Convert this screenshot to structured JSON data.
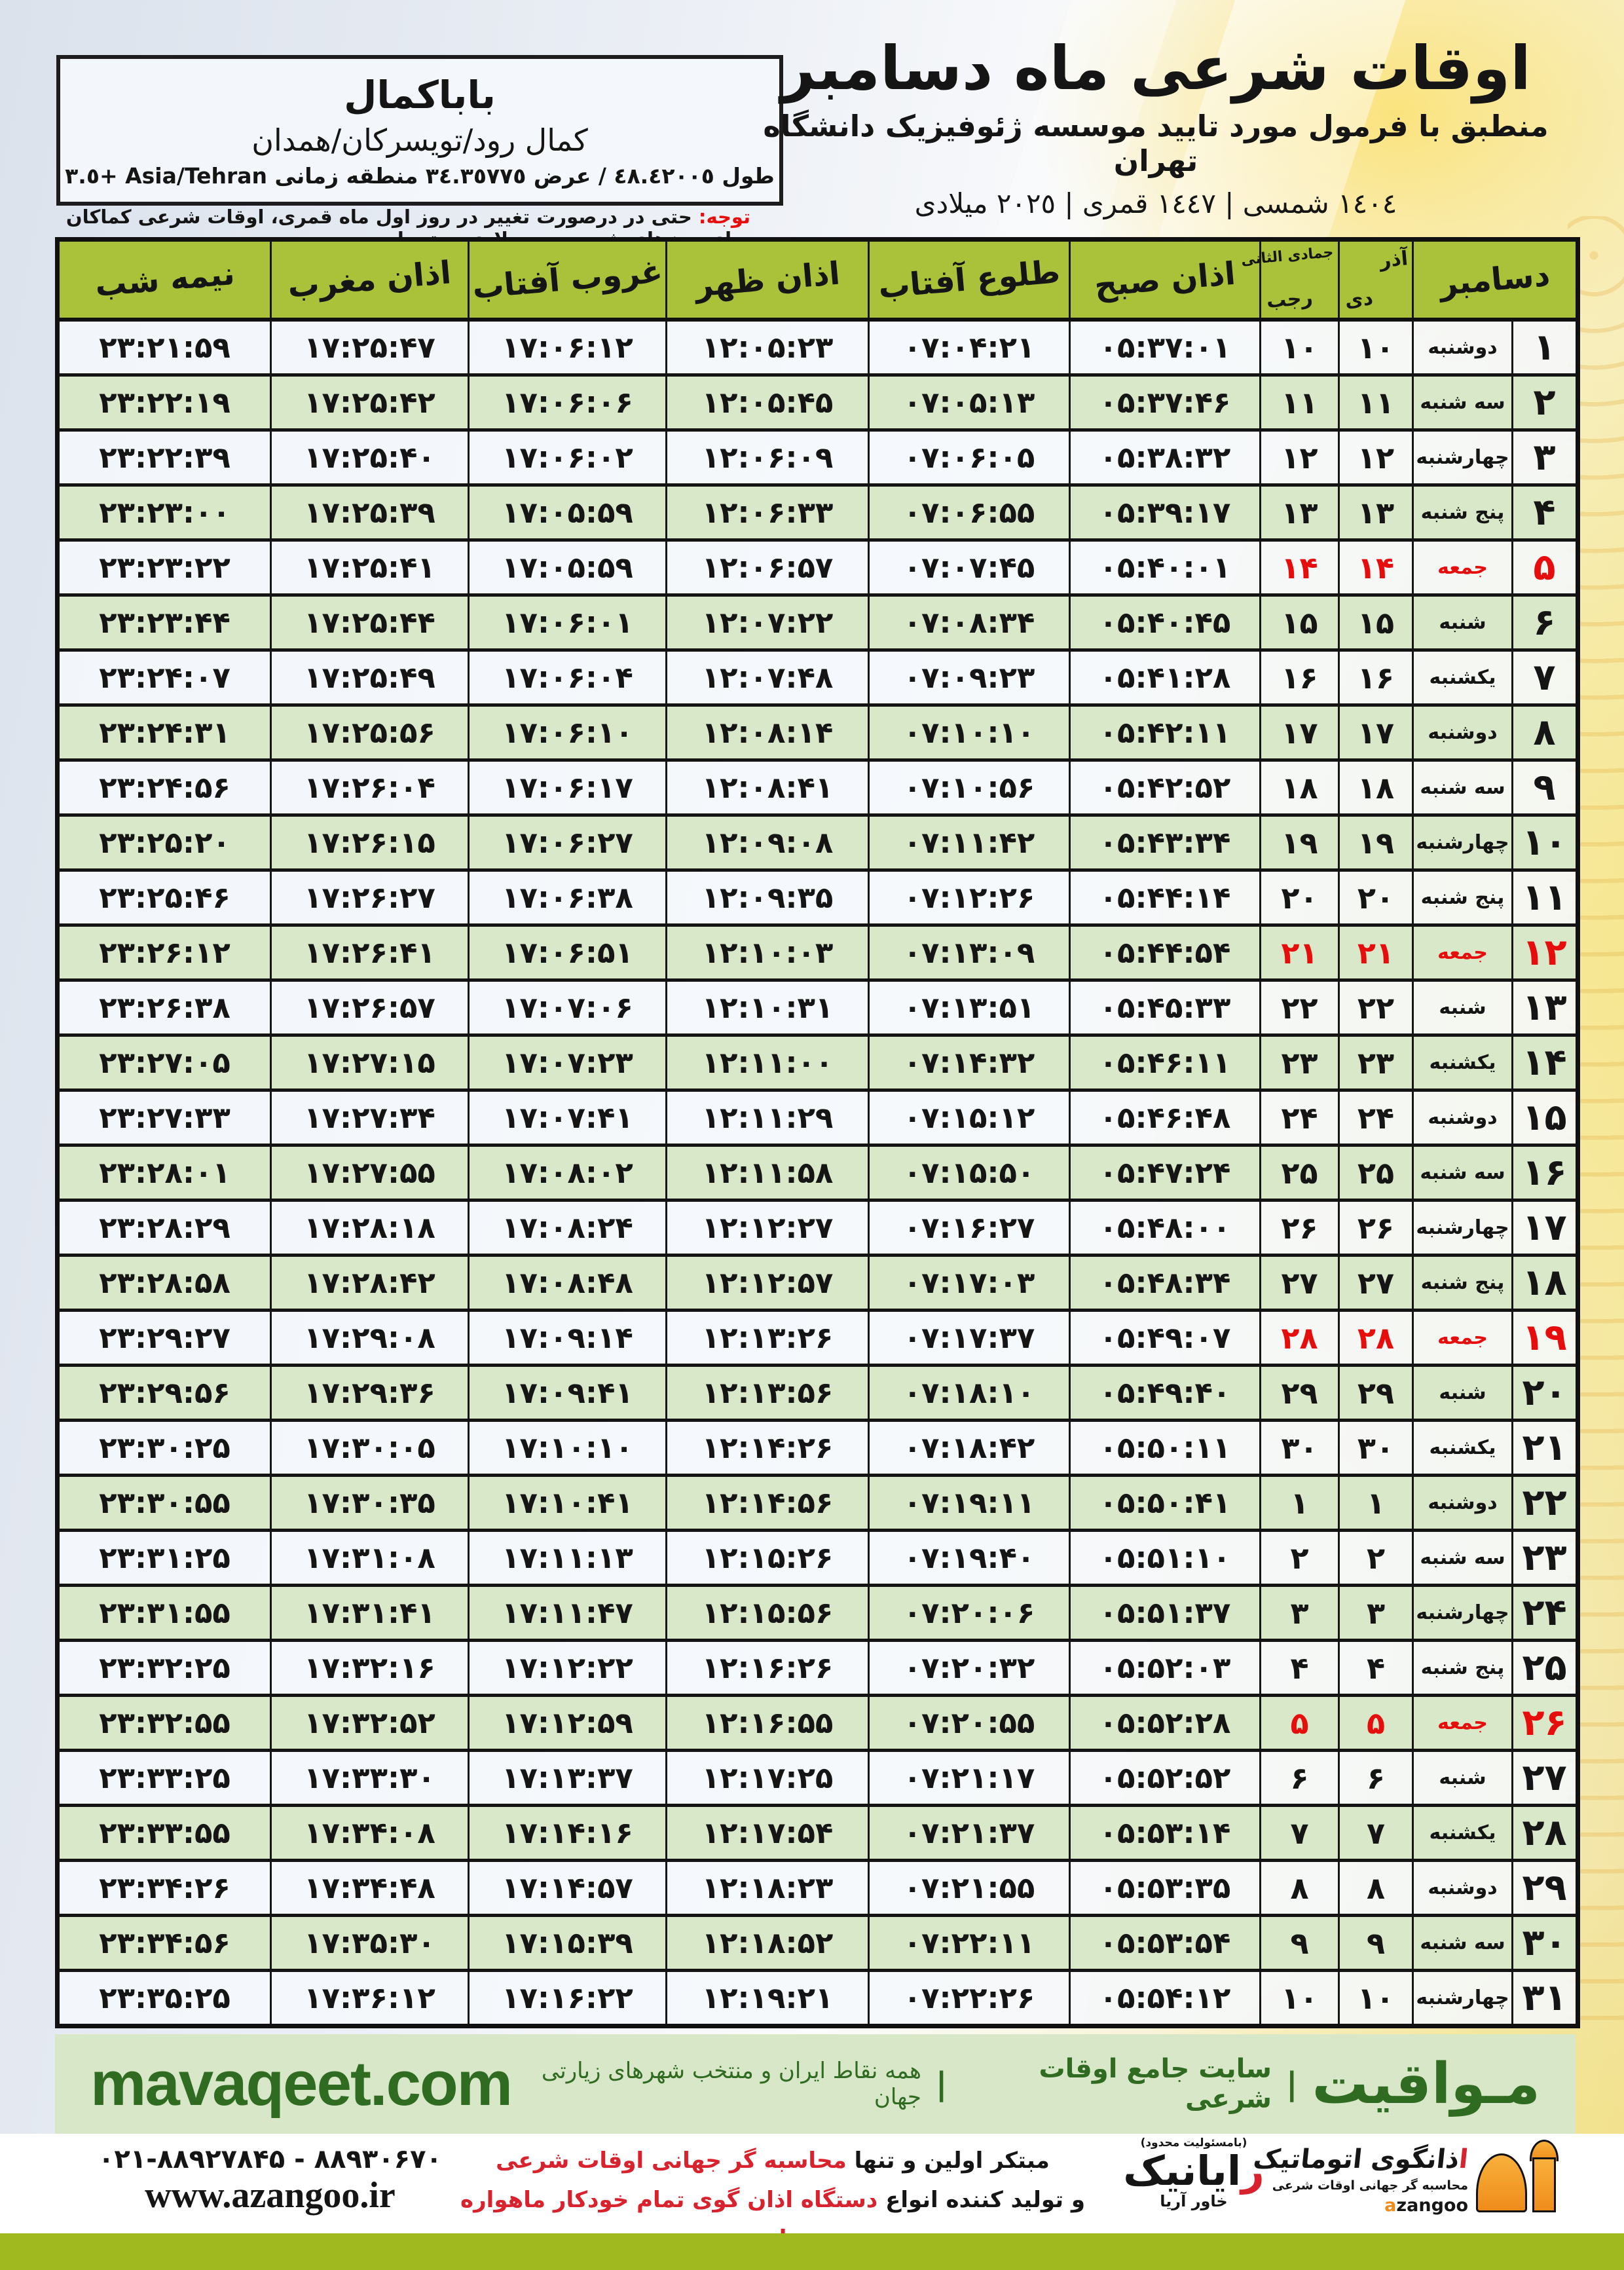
{
  "location": {
    "name": "باباکمال",
    "region": "کمال رود/تویسرکان/همدان",
    "coords": "طول ٤٨.٤٢٠٠٥ / عرض ٣٤.٣٥٧٧٥ منطقه زمانی Asia/Tehran +٣.٥"
  },
  "header": {
    "title": "اوقات شرعی ماه دسامبر",
    "subtitle": "منطبق با فرمول مورد تایید موسسه ژئوفیزیک دانشگاه تهران",
    "years": "١٤٠٤ شمسی | ١٤٤٧ قمری | ٢٠٢٥ میلادی"
  },
  "note": {
    "label": "توجه:",
    "text": " حتی در درصورت تغییر در روز اول ماه قمری، اوقات شرعی کماکان برای روزهای شمسی و میلادی معتبر است."
  },
  "table": {
    "headers": {
      "month": "دسامبر",
      "persian_top": "آذر",
      "persian_bottom": "دی",
      "hijri_top": "جمادی الثانی",
      "hijri_bottom": "رجب",
      "azan_sobh": "اذان صبح",
      "tolu_aftab": "طلوع آفتاب",
      "azan_zohr": "اذان ظهر",
      "ghorub_aftab": "غروب آفتاب",
      "azan_maghreb": "اذان مغرب",
      "nime_shab": "نیمه شب"
    },
    "rows": [
      [
        1,
        "دوشنبه",
        "10",
        "10",
        "05:37:01",
        "07:04:21",
        "12:05:23",
        "17:06:12",
        "17:25:47",
        "23:21:59"
      ],
      [
        2,
        "سه شنبه",
        "11",
        "11",
        "05:37:46",
        "07:05:13",
        "12:05:45",
        "17:06:06",
        "17:25:42",
        "23:22:19"
      ],
      [
        3,
        "چهارشنبه",
        "12",
        "12",
        "05:38:32",
        "07:06:05",
        "12:06:09",
        "17:06:02",
        "17:25:40",
        "23:22:39"
      ],
      [
        4,
        "پنج شنبه",
        "13",
        "13",
        "05:39:17",
        "07:06:55",
        "12:06:33",
        "17:05:59",
        "17:25:39",
        "23:23:00"
      ],
      [
        5,
        "جمعه",
        "14",
        "14",
        "05:40:01",
        "07:07:45",
        "12:06:57",
        "17:05:59",
        "17:25:41",
        "23:23:22"
      ],
      [
        6,
        "شنبه",
        "15",
        "15",
        "05:40:45",
        "07:08:34",
        "12:07:22",
        "17:06:01",
        "17:25:44",
        "23:23:44"
      ],
      [
        7,
        "یکشنبه",
        "16",
        "16",
        "05:41:28",
        "07:09:23",
        "12:07:48",
        "17:06:04",
        "17:25:49",
        "23:24:07"
      ],
      [
        8,
        "دوشنبه",
        "17",
        "17",
        "05:42:11",
        "07:10:10",
        "12:08:14",
        "17:06:10",
        "17:25:56",
        "23:24:31"
      ],
      [
        9,
        "سه شنبه",
        "18",
        "18",
        "05:42:52",
        "07:10:56",
        "12:08:41",
        "17:06:17",
        "17:26:04",
        "23:24:56"
      ],
      [
        10,
        "چهارشنبه",
        "19",
        "19",
        "05:43:34",
        "07:11:42",
        "12:09:08",
        "17:06:27",
        "17:26:15",
        "23:25:20"
      ],
      [
        11,
        "پنج شنبه",
        "20",
        "20",
        "05:44:14",
        "07:12:26",
        "12:09:35",
        "17:06:38",
        "17:26:27",
        "23:25:46"
      ],
      [
        12,
        "جمعه",
        "21",
        "21",
        "05:44:54",
        "07:13:09",
        "12:10:03",
        "17:06:51",
        "17:26:41",
        "23:26:12"
      ],
      [
        13,
        "شنبه",
        "22",
        "22",
        "05:45:33",
        "07:13:51",
        "12:10:31",
        "17:07:06",
        "17:26:57",
        "23:26:38"
      ],
      [
        14,
        "یکشنبه",
        "23",
        "23",
        "05:46:11",
        "07:14:32",
        "12:11:00",
        "17:07:23",
        "17:27:15",
        "23:27:05"
      ],
      [
        15,
        "دوشنبه",
        "24",
        "24",
        "05:46:48",
        "07:15:12",
        "12:11:29",
        "17:07:41",
        "17:27:34",
        "23:27:33"
      ],
      [
        16,
        "سه شنبه",
        "25",
        "25",
        "05:47:24",
        "07:15:50",
        "12:11:58",
        "17:08:02",
        "17:27:55",
        "23:28:01"
      ],
      [
        17,
        "چهارشنبه",
        "26",
        "26",
        "05:48:00",
        "07:16:27",
        "12:12:27",
        "17:08:24",
        "17:28:18",
        "23:28:29"
      ],
      [
        18,
        "پنج شنبه",
        "27",
        "27",
        "05:48:34",
        "07:17:03",
        "12:12:57",
        "17:08:48",
        "17:28:42",
        "23:28:58"
      ],
      [
        19,
        "جمعه",
        "28",
        "28",
        "05:49:07",
        "07:17:37",
        "12:13:26",
        "17:09:14",
        "17:29:08",
        "23:29:27"
      ],
      [
        20,
        "شنبه",
        "29",
        "29",
        "05:49:40",
        "07:18:10",
        "12:13:56",
        "17:09:41",
        "17:29:36",
        "23:29:56"
      ],
      [
        21,
        "یکشنبه",
        "30",
        "30",
        "05:50:11",
        "07:18:42",
        "12:14:26",
        "17:10:10",
        "17:30:05",
        "23:30:25"
      ],
      [
        22,
        "دوشنبه",
        "1",
        "1",
        "05:50:41",
        "07:19:11",
        "12:14:56",
        "17:10:41",
        "17:30:35",
        "23:30:55"
      ],
      [
        23,
        "سه شنبه",
        "2",
        "2",
        "05:51:10",
        "07:19:40",
        "12:15:26",
        "17:11:13",
        "17:31:08",
        "23:31:25"
      ],
      [
        24,
        "چهارشنبه",
        "3",
        "3",
        "05:51:37",
        "07:20:06",
        "12:15:56",
        "17:11:47",
        "17:31:41",
        "23:31:55"
      ],
      [
        25,
        "پنج شنبه",
        "4",
        "4",
        "05:52:03",
        "07:20:32",
        "12:16:26",
        "17:12:22",
        "17:32:16",
        "23:32:25"
      ],
      [
        26,
        "جمعه",
        "5",
        "5",
        "05:52:28",
        "07:20:55",
        "12:16:55",
        "17:12:59",
        "17:32:52",
        "23:32:55"
      ],
      [
        27,
        "شنبه",
        "6",
        "6",
        "05:52:52",
        "07:21:17",
        "12:17:25",
        "17:13:37",
        "17:33:30",
        "23:33:25"
      ],
      [
        28,
        "یکشنبه",
        "7",
        "7",
        "05:53:14",
        "07:21:37",
        "12:17:54",
        "17:14:16",
        "17:34:08",
        "23:33:55"
      ],
      [
        29,
        "دوشنبه",
        "8",
        "8",
        "05:53:35",
        "07:21:55",
        "12:18:23",
        "17:14:57",
        "17:34:48",
        "23:34:26"
      ],
      [
        30,
        "سه شنبه",
        "9",
        "9",
        "05:53:54",
        "07:22:11",
        "12:18:52",
        "17:15:39",
        "17:35:30",
        "23:34:56"
      ],
      [
        31,
        "چهارشنبه",
        "10",
        "10",
        "05:54:12",
        "07:22:26",
        "12:19:21",
        "17:16:22",
        "17:36:12",
        "23:35:25"
      ]
    ],
    "friday_weekday": "جمعه"
  },
  "brand_bar": {
    "brand": "مـواقیت",
    "separator": "|",
    "tagline": "سایت جامع اوقات شرعی",
    "tagline2": "همه نقاط ایران و منتخب شهرهای زیارتی جهان",
    "site": "mavaqeet.com"
  },
  "bottom": {
    "phone": "۰۲۱-۸۸۹۲۷۸۴۵ - ۸۸۹۳۰۶۷۰",
    "site": "www.azangoo.ir",
    "line1_black": "مبتکر اولین و تنها ",
    "line1_red": "محاسبه گر جهانی اوقات شرعی",
    "line2_black": "و تولید کننده انواع ",
    "line2_red": "دستگاه اذان گوی تمام خودکار ماهواره ای",
    "rayanik_note": "(بامسئولیت محدود)",
    "rayanik_init": "ر",
    "rayanik_rest": "ایانیک",
    "rayanik_sub": "خاور آریا",
    "azangoo_init": "ا",
    "azangoo_rest": "ذانگوی اتوماتیک",
    "azangoo_sub": "محاسبه گر جهانی اوقات شرعی",
    "azangoo_en_init": "a",
    "azangoo_en_rest": "zangoo"
  },
  "colors": {
    "header_green": "#a9c23a",
    "row_green": "#d9e8c9",
    "friday_red": "#e60d0d",
    "brand_green": "#2f6b21",
    "footer_bg": "#d7e7c8",
    "bottom_bar": "#9fb91e"
  }
}
